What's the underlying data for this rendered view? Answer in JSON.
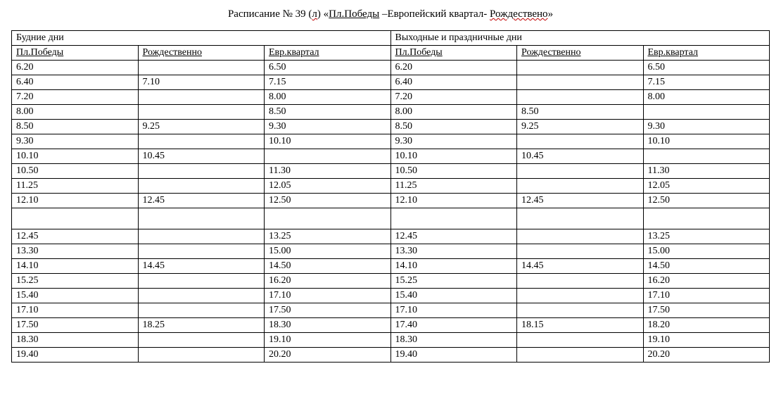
{
  "title": {
    "prefix": "Расписание  № 39 (",
    "wavy1": "л",
    "mid1": ") «",
    "u1": "Пл.Победы",
    "mid2": " –Европейский квартал- ",
    "wavy2": "Рождествено",
    "suffix": "»"
  },
  "sections": {
    "weekday": "Будние дни",
    "weekend": "Выходные и праздничные дни"
  },
  "columns": {
    "c1": "Пл.Победы",
    "c2": "Рождественно",
    "c3": "Евр.квартал",
    "c4": "Пл.Победы",
    "c5": "Рождественно",
    "c6": "Евр.квартал"
  },
  "rows": [
    [
      "6.20",
      "",
      "6.50",
      "6.20",
      "",
      "6.50"
    ],
    [
      "6.40",
      "7.10",
      "7.15",
      "6.40",
      "",
      "7.15"
    ],
    [
      "7.20",
      "",
      "8.00",
      "7.20",
      "",
      "8.00"
    ],
    [
      "8.00",
      "",
      "8.50",
      "8.00",
      "8.50",
      ""
    ],
    [
      "8.50",
      "9.25",
      "9.30",
      "8.50",
      "9.25",
      "9.30"
    ],
    [
      "9.30",
      "",
      "10.10",
      "9.30",
      "",
      "10.10"
    ],
    [
      "10.10",
      "10.45",
      "",
      "10.10",
      "10.45",
      ""
    ],
    [
      "10.50",
      "",
      "11.30",
      "10.50",
      "",
      "11.30"
    ],
    [
      "11.25",
      "",
      "12.05",
      "11.25",
      "",
      "12.05"
    ],
    [
      "12.10",
      "12.45",
      "12.50",
      "12.10",
      "12.45",
      "12.50"
    ],
    [
      "12.45",
      "",
      "13.25",
      "12.45",
      "",
      "13.25"
    ],
    [
      "13.30",
      "",
      "15.00",
      "13.30",
      "",
      "15.00"
    ],
    [
      "14.10",
      "14.45",
      "14.50",
      "14.10",
      "14.45",
      "14.50"
    ],
    [
      "15.25",
      "",
      "16.20",
      "15.25",
      "",
      "16.20"
    ],
    [
      "15.40",
      "",
      "17.10",
      "15.40",
      "",
      "17.10"
    ],
    [
      "17.10",
      "",
      "17.50",
      "17.10",
      "",
      "17.50"
    ],
    [
      "17.50",
      "18.25",
      "18.30",
      "17.40",
      "18.15",
      "18.20"
    ],
    [
      "18.30",
      "",
      "19.10",
      "18.30",
      "",
      "19.10"
    ],
    [
      "19.40",
      "",
      "20.20",
      "19.40",
      "",
      "20.20"
    ]
  ],
  "spacer_after_index": 9
}
